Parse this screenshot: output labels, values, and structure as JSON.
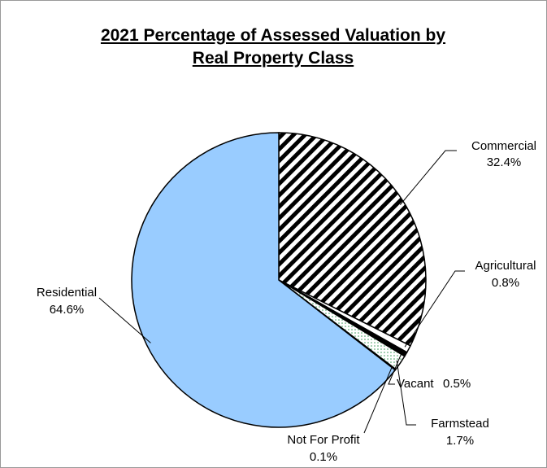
{
  "chart_data": {
    "type": "pie",
    "title": "2021 Percentage of Assessed Valuation by Real Property Class",
    "categories": [
      "Commercial",
      "Agricultural",
      "Vacant",
      "Farmstead",
      "Not For Profit",
      "Residential"
    ],
    "values": [
      32.4,
      0.8,
      0.5,
      1.7,
      0.1,
      64.6
    ],
    "value_labels": [
      "32.4%",
      "0.8%",
      "0.5%",
      "1.7%",
      "0.1%",
      "64.6%"
    ],
    "colors": [
      "url(#hatch)",
      "#ffffff",
      "#000000",
      "url(#dots)",
      "#ffffff",
      "#99ccff"
    ]
  }
}
